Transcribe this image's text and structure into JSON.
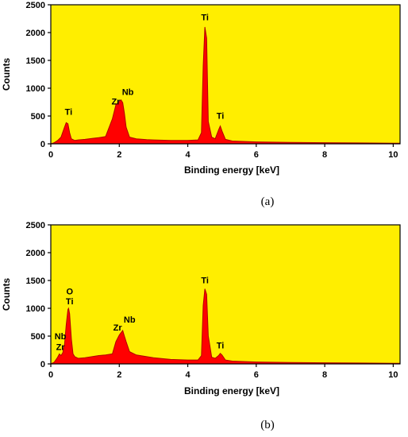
{
  "chart_data": [
    {
      "type": "area",
      "caption": "(a)",
      "xlabel": "Binding energy [keV]",
      "ylabel": "Counts",
      "xlim": [
        0,
        10.2
      ],
      "ylim": [
        0,
        2500
      ],
      "xticks": [
        0,
        2,
        4,
        6,
        8,
        10
      ],
      "yticks": [
        0,
        500,
        1000,
        1500,
        2000,
        2500
      ],
      "grid": false,
      "colors": {
        "plot_bg": "#ffee00",
        "fill": "#ff0000",
        "edge": "#b00000",
        "axes": "#000000"
      },
      "x": [
        0.0,
        0.1,
        0.2,
        0.3,
        0.4,
        0.45,
        0.5,
        0.55,
        0.6,
        0.7,
        0.8,
        1.0,
        1.2,
        1.4,
        1.6,
        1.8,
        1.9,
        2.0,
        2.05,
        2.1,
        2.15,
        2.2,
        2.3,
        2.5,
        2.8,
        3.0,
        3.5,
        4.0,
        4.3,
        4.4,
        4.45,
        4.5,
        4.55,
        4.6,
        4.7,
        4.8,
        4.9,
        4.95,
        5.0,
        5.1,
        5.3,
        6.0,
        7.0,
        8.0,
        9.0,
        10.0,
        10.2
      ],
      "y": [
        0,
        20,
        60,
        120,
        300,
        380,
        360,
        200,
        90,
        60,
        70,
        80,
        95,
        110,
        130,
        450,
        700,
        760,
        790,
        740,
        550,
        300,
        120,
        90,
        75,
        70,
        60,
        60,
        70,
        200,
        1400,
        2100,
        1900,
        400,
        120,
        90,
        250,
        320,
        230,
        80,
        50,
        35,
        25,
        20,
        15,
        10,
        10
      ],
      "annotations": [
        {
          "text": "Ti",
          "x": 0.52,
          "y": 520
        },
        {
          "text": "Zr",
          "x": 1.9,
          "y": 710
        },
        {
          "text": "Nb",
          "x": 2.25,
          "y": 880
        },
        {
          "text": "Ti",
          "x": 4.5,
          "y": 2220
        },
        {
          "text": "Ti",
          "x": 4.95,
          "y": 450
        }
      ]
    },
    {
      "type": "area",
      "caption": "(b)",
      "xlabel": "Binding energy [keV]",
      "ylabel": "Counts",
      "xlim": [
        0,
        10.2
      ],
      "ylim": [
        0,
        2500
      ],
      "xticks": [
        0,
        2,
        4,
        6,
        8,
        10
      ],
      "yticks": [
        0,
        500,
        1000,
        1500,
        2000,
        2500
      ],
      "grid": false,
      "colors": {
        "plot_bg": "#ffee00",
        "fill": "#ff0000",
        "edge": "#b00000",
        "axes": "#000000"
      },
      "x": [
        0.0,
        0.1,
        0.2,
        0.25,
        0.3,
        0.35,
        0.4,
        0.45,
        0.5,
        0.52,
        0.55,
        0.6,
        0.65,
        0.7,
        0.8,
        1.0,
        1.2,
        1.4,
        1.6,
        1.8,
        1.9,
        2.0,
        2.05,
        2.1,
        2.15,
        2.2,
        2.3,
        2.5,
        3.0,
        3.5,
        4.0,
        4.3,
        4.4,
        4.45,
        4.5,
        4.55,
        4.6,
        4.7,
        4.8,
        4.9,
        4.95,
        5.0,
        5.1,
        5.3,
        6.0,
        7.0,
        8.0,
        9.0,
        10.0,
        10.2
      ],
      "y": [
        0,
        30,
        120,
        180,
        150,
        200,
        350,
        700,
        980,
        1000,
        900,
        450,
        180,
        130,
        100,
        110,
        130,
        150,
        160,
        180,
        400,
        520,
        560,
        600,
        500,
        400,
        220,
        160,
        110,
        80,
        70,
        70,
        150,
        1050,
        1350,
        1250,
        500,
        120,
        100,
        150,
        190,
        160,
        70,
        50,
        35,
        25,
        20,
        15,
        10,
        10
      ],
      "annotations": [
        {
          "text": "Nb",
          "x": 0.28,
          "y": 440
        },
        {
          "text": "Zr",
          "x": 0.28,
          "y": 250
        },
        {
          "text": "O",
          "x": 0.55,
          "y": 1250
        },
        {
          "text": "Ti",
          "x": 0.55,
          "y": 1070
        },
        {
          "text": "Zr",
          "x": 1.95,
          "y": 600
        },
        {
          "text": "Nb",
          "x": 2.3,
          "y": 740
        },
        {
          "text": "Ti",
          "x": 4.5,
          "y": 1450
        },
        {
          "text": "Ti",
          "x": 4.95,
          "y": 280
        }
      ]
    }
  ]
}
